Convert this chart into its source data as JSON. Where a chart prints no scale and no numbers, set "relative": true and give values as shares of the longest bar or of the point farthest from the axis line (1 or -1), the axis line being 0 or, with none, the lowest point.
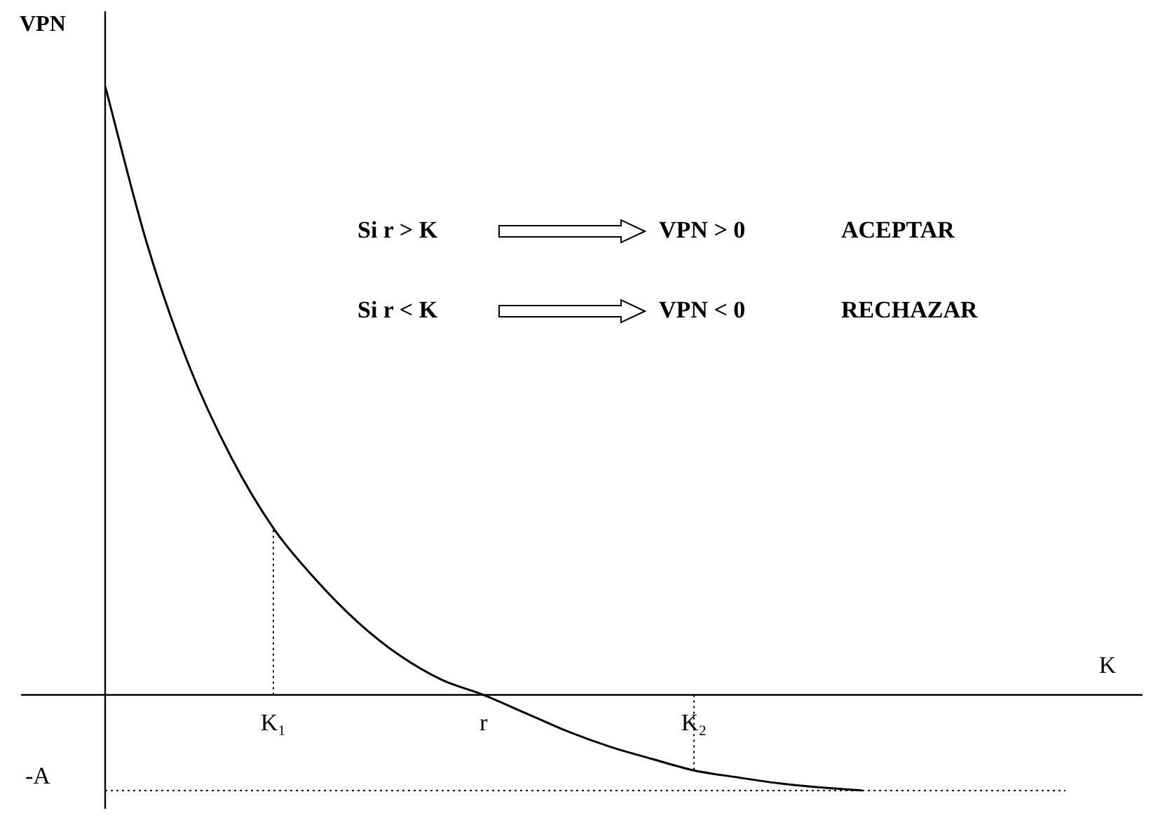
{
  "chart_data": {
    "type": "line",
    "relative": true,
    "xlabel": "K",
    "ylabel": "VPN",
    "categories": [
      null,
      null,
      null,
      null,
      "K₁",
      null,
      null,
      null,
      null,
      "r",
      null,
      null,
      null,
      null,
      "K₂",
      null,
      null,
      null,
      null,
      null,
      null,
      null,
      null,
      null,
      null
    ],
    "series": [
      {
        "color": "#000000",
        "values": [
          1.0,
          0.74,
          0.54,
          0.39,
          0.274,
          0.19,
          0.12,
          0.065,
          0.025,
          0,
          -0.03,
          -0.06,
          -0.085,
          -0.105,
          -0.124,
          -0.135,
          -0.145,
          -0.152,
          -0.157,
          null,
          null,
          null,
          null,
          null,
          null
        ]
      }
    ],
    "marker": "none",
    "line_style": "solid",
    "ref_lines": [
      {
        "axis": "x",
        "value": "K₁",
        "line_style": "dotted"
      },
      {
        "axis": "x",
        "value": "K₂",
        "line_style": "dotted"
      },
      {
        "axis": "y",
        "value": -0.157,
        "label": "-A",
        "line_style": "dotted"
      }
    ],
    "annotations": [
      "Si r > K",
      "VPN > 0",
      "ACEPTAR",
      "Si r < K",
      "VPN < 0",
      "RECHAZAR"
    ]
  }
}
